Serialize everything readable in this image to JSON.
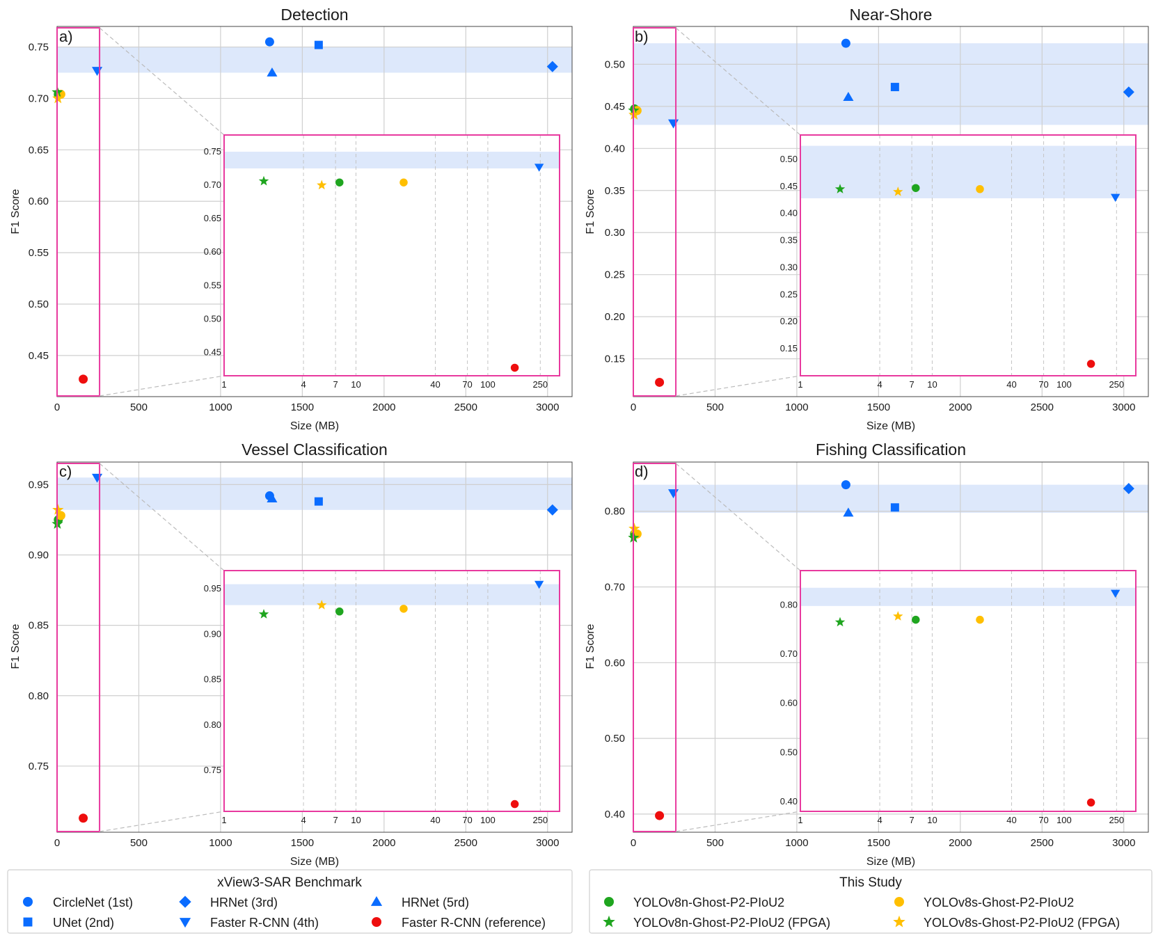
{
  "colors": {
    "blue": "#0a6cff",
    "green": "#1fa51f",
    "yellow": "#ffbf00",
    "red": "#ee0e0e",
    "band": "#dde8fb",
    "magenta": "#e8399e",
    "grid": "#cfcfcf"
  },
  "chart_data": [
    {
      "type": "scatter",
      "panel_label": "a)",
      "title": "Detection",
      "xlabel": "Size (MB)",
      "ylabel": "F1 Score",
      "xlim": [
        0,
        3150
      ],
      "ylim": [
        0.41,
        0.77
      ],
      "xticks": [
        0,
        500,
        1000,
        1500,
        2000,
        2500,
        3000
      ],
      "yticks": [
        0.45,
        0.5,
        0.55,
        0.6,
        0.65,
        0.7,
        0.75
      ],
      "band": [
        0.725,
        0.75
      ],
      "zoom_x": [
        0,
        260
      ],
      "points": [
        {
          "name": "CircleNet (1st)",
          "x": 1300,
          "y": 0.755
        },
        {
          "name": "UNet (2nd)",
          "x": 1600,
          "y": 0.752
        },
        {
          "name": "HRNet (3rd)",
          "x": 3030,
          "y": 0.731
        },
        {
          "name": "Faster R-CNN (4th)",
          "x": 245,
          "y": 0.727
        },
        {
          "name": "HRNet (5rd)",
          "x": 1315,
          "y": 0.725
        },
        {
          "name": "Faster R-CNN (reference)",
          "x": 160,
          "y": 0.427
        },
        {
          "name": "YOLOv8n-Ghost-P2-PIoU2",
          "x": 7.5,
          "y": 0.704
        },
        {
          "name": "YOLOv8s-Ghost-P2-PIoU2",
          "x": 23,
          "y": 0.704
        },
        {
          "name": "YOLOv8n-Ghost-P2-PIoU2 (FPGA)",
          "x": 2,
          "y": 0.706
        },
        {
          "name": "YOLOv8s-Ghost-P2-PIoU2 (FPGA)",
          "x": 5.5,
          "y": 0.7
        }
      ],
      "inset": {
        "ylim": [
          0.415,
          0.775
        ],
        "yticks": [
          0.45,
          0.5,
          0.55,
          0.6,
          0.65,
          0.7,
          0.75
        ],
        "yformat": 2
      }
    },
    {
      "type": "scatter",
      "panel_label": "b)",
      "title": "Near-Shore",
      "xlabel": "Size (MB)",
      "ylabel": "F1 Score",
      "xlim": [
        0,
        3150
      ],
      "ylim": [
        0.105,
        0.545
      ],
      "xticks": [
        0,
        500,
        1000,
        1500,
        2000,
        2500,
        3000
      ],
      "yticks": [
        0.15,
        0.2,
        0.25,
        0.3,
        0.35,
        0.4,
        0.45,
        0.5
      ],
      "band": [
        0.428,
        0.525
      ],
      "zoom_x": [
        0,
        260
      ],
      "points": [
        {
          "name": "CircleNet (1st)",
          "x": 1300,
          "y": 0.525
        },
        {
          "name": "UNet (2nd)",
          "x": 1600,
          "y": 0.473
        },
        {
          "name": "HRNet (3rd)",
          "x": 3030,
          "y": 0.467
        },
        {
          "name": "Faster R-CNN (4th)",
          "x": 245,
          "y": 0.43
        },
        {
          "name": "HRNet (5rd)",
          "x": 1315,
          "y": 0.461
        },
        {
          "name": "Faster R-CNN (reference)",
          "x": 160,
          "y": 0.122
        },
        {
          "name": "YOLOv8n-Ghost-P2-PIoU2",
          "x": 7.5,
          "y": 0.447
        },
        {
          "name": "YOLOv8s-Ghost-P2-PIoU2",
          "x": 23,
          "y": 0.445
        },
        {
          "name": "YOLOv8n-Ghost-P2-PIoU2 (FPGA)",
          "x": 2,
          "y": 0.445
        },
        {
          "name": "YOLOv8s-Ghost-P2-PIoU2 (FPGA)",
          "x": 5.5,
          "y": 0.44
        }
      ],
      "inset": {
        "ylim": [
          0.1,
          0.545
        ],
        "yticks": [
          0.15,
          0.2,
          0.25,
          0.3,
          0.35,
          0.4,
          0.45,
          0.5
        ],
        "yformat": 2
      }
    },
    {
      "type": "scatter",
      "panel_label": "c)",
      "title": "Vessel Classification",
      "xlabel": "Size (MB)",
      "ylabel": "F1 Score",
      "xlim": [
        0,
        3150
      ],
      "ylim": [
        0.703,
        0.966
      ],
      "xticks": [
        0,
        500,
        1000,
        1500,
        2000,
        2500,
        3000
      ],
      "yticks": [
        0.75,
        0.8,
        0.85,
        0.9,
        0.95
      ],
      "band": [
        0.932,
        0.955
      ],
      "zoom_x": [
        0,
        260
      ],
      "points": [
        {
          "name": "CircleNet (1st)",
          "x": 1300,
          "y": 0.942
        },
        {
          "name": "UNet (2nd)",
          "x": 1600,
          "y": 0.938
        },
        {
          "name": "HRNet (3rd)",
          "x": 3030,
          "y": 0.932
        },
        {
          "name": "Faster R-CNN (4th)",
          "x": 245,
          "y": 0.955
        },
        {
          "name": "HRNet (5rd)",
          "x": 1315,
          "y": 0.94
        },
        {
          "name": "Faster R-CNN (reference)",
          "x": 160,
          "y": 0.713
        },
        {
          "name": "YOLOv8n-Ghost-P2-PIoU2",
          "x": 7.5,
          "y": 0.925
        },
        {
          "name": "YOLOv8s-Ghost-P2-PIoU2",
          "x": 23,
          "y": 0.928
        },
        {
          "name": "YOLOv8n-Ghost-P2-PIoU2 (FPGA)",
          "x": 2,
          "y": 0.922
        },
        {
          "name": "YOLOv8s-Ghost-P2-PIoU2 (FPGA)",
          "x": 5.5,
          "y": 0.932
        }
      ],
      "inset": {
        "ylim": [
          0.705,
          0.97
        ],
        "yticks": [
          0.75,
          0.8,
          0.85,
          0.9,
          0.95
        ],
        "yformat": 2
      }
    },
    {
      "type": "scatter",
      "panel_label": "d)",
      "title": "Fishing Classification",
      "xlabel": "Size (MB)",
      "ylabel": "F1 Score",
      "xlim": [
        0,
        3150
      ],
      "ylim": [
        0.376,
        0.865
      ],
      "xticks": [
        0,
        500,
        1000,
        1500,
        2000,
        2500,
        3000
      ],
      "yticks": [
        0.4,
        0.5,
        0.6,
        0.7,
        0.8
      ],
      "band": [
        0.798,
        0.835
      ],
      "zoom_x": [
        0,
        260
      ],
      "points": [
        {
          "name": "CircleNet (1st)",
          "x": 1300,
          "y": 0.835
        },
        {
          "name": "UNet (2nd)",
          "x": 1600,
          "y": 0.805
        },
        {
          "name": "HRNet (3rd)",
          "x": 3030,
          "y": 0.83
        },
        {
          "name": "Faster R-CNN (4th)",
          "x": 245,
          "y": 0.824
        },
        {
          "name": "HRNet (5rd)",
          "x": 1315,
          "y": 0.798
        },
        {
          "name": "Faster R-CNN (reference)",
          "x": 160,
          "y": 0.398
        },
        {
          "name": "YOLOv8n-Ghost-P2-PIoU2",
          "x": 7.5,
          "y": 0.77
        },
        {
          "name": "YOLOv8s-Ghost-P2-PIoU2",
          "x": 23,
          "y": 0.77
        },
        {
          "name": "YOLOv8n-Ghost-P2-PIoU2 (FPGA)",
          "x": 2,
          "y": 0.765
        },
        {
          "name": "YOLOv8s-Ghost-P2-PIoU2 (FPGA)",
          "x": 5.5,
          "y": 0.777
        }
      ],
      "inset": {
        "ylim": [
          0.38,
          0.87
        ],
        "yticks": [
          0.4,
          0.5,
          0.6,
          0.7,
          0.8
        ],
        "yformat": 2
      }
    }
  ],
  "inset_xticks": [
    1,
    4,
    7,
    10,
    40,
    70,
    100,
    250
  ],
  "inset_xlim_log": [
    1,
    350
  ],
  "legends": {
    "benchmark": {
      "title": "xView3-SAR Benchmark",
      "items": [
        {
          "label": "CircleNet (1st)",
          "marker": "circle",
          "color": "blue"
        },
        {
          "label": "HRNet (3rd)",
          "marker": "diamond",
          "color": "blue"
        },
        {
          "label": "HRNet (5rd)",
          "marker": "triangle-up",
          "color": "blue"
        },
        {
          "label": "UNet (2nd)",
          "marker": "square",
          "color": "blue"
        },
        {
          "label": "Faster R-CNN (4th)",
          "marker": "triangle-down",
          "color": "blue"
        },
        {
          "label": "Faster R-CNN (reference)",
          "marker": "circle",
          "color": "red"
        }
      ]
    },
    "study": {
      "title": "This Study",
      "items": [
        {
          "label": "YOLOv8n-Ghost-P2-PIoU2",
          "marker": "circle",
          "color": "green"
        },
        {
          "label": "YOLOv8s-Ghost-P2-PIoU2",
          "marker": "circle",
          "color": "yellow"
        },
        {
          "label": "YOLOv8n-Ghost-P2-PIoU2 (FPGA)",
          "marker": "star",
          "color": "green"
        },
        {
          "label": "YOLOv8s-Ghost-P2-PIoU2 (FPGA)",
          "marker": "star",
          "color": "yellow"
        }
      ]
    }
  }
}
